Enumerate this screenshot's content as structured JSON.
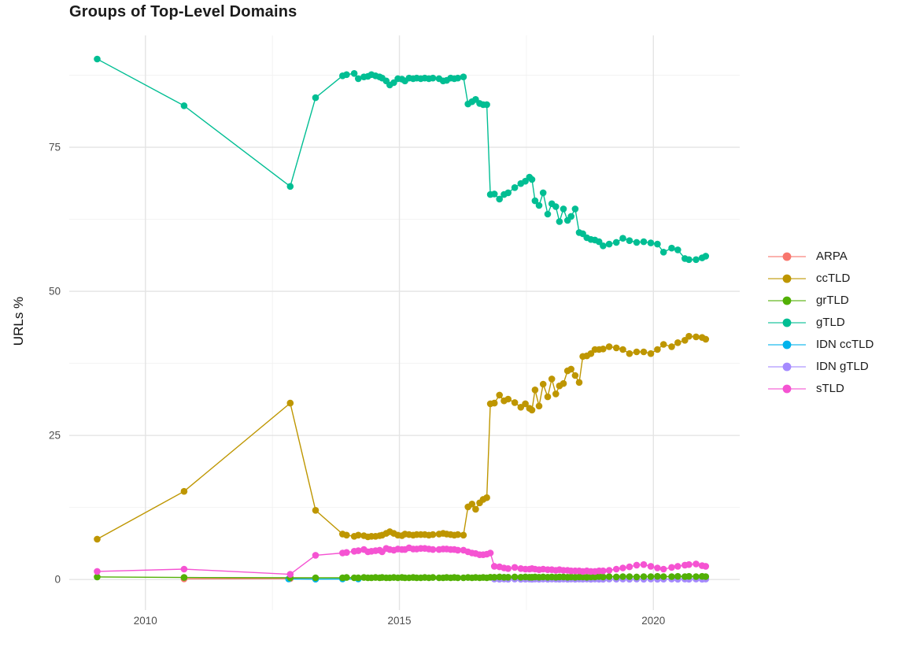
{
  "chart_data": {
    "type": "line",
    "title": "Groups of Top-Level Domains",
    "xlabel": "",
    "ylabel": "URLs %",
    "xlim": [
      2008.5,
      2021.7
    ],
    "ylim": [
      -5.3,
      94.4
    ],
    "grid": true,
    "legend_position": "right",
    "xticks": {
      "values": [
        2010,
        2015,
        2020
      ],
      "labels": [
        "2010",
        "2015",
        "2020"
      ]
    },
    "x_minor": [
      2012.5,
      2017.5
    ],
    "yticks": {
      "values": [
        0,
        25,
        50,
        75
      ],
      "labels": [
        "0",
        "25",
        "50",
        "75"
      ]
    },
    "y_minor": [
      12.5,
      37.5,
      62.5,
      87.5
    ],
    "series": [
      {
        "name": "ARPA",
        "color": "#F8766D",
        "x": [
          2010.76,
          2012.85,
          2013.35
        ],
        "y": [
          0.12,
          0.15,
          0.1
        ]
      },
      {
        "name": "ccTLD",
        "color": "#BE9600",
        "x": [
          2009.05,
          2010.76,
          2012.85,
          2013.35,
          2013.88,
          2013.96,
          2014.11,
          2014.19,
          2014.3,
          2014.38,
          2014.45,
          2014.53,
          2014.61,
          2014.66,
          2014.74,
          2014.81,
          2014.89,
          2014.97,
          2015.05,
          2015.11,
          2015.19,
          2015.27,
          2015.34,
          2015.42,
          2015.5,
          2015.58,
          2015.66,
          2015.78,
          2015.86,
          2015.93,
          2016.01,
          2016.08,
          2016.15,
          2016.26,
          2016.35,
          2016.43,
          2016.5,
          2016.58,
          2016.65,
          2016.72,
          2016.79,
          2016.87,
          2016.97,
          2017.06,
          2017.14,
          2017.27,
          2017.39,
          2017.48,
          2017.56,
          2017.61,
          2017.67,
          2017.75,
          2017.83,
          2017.92,
          2018.0,
          2018.08,
          2018.15,
          2018.23,
          2018.31,
          2018.38,
          2018.46,
          2018.54,
          2018.61,
          2018.69,
          2018.77,
          2018.85,
          2018.93,
          2019.01,
          2019.13,
          2019.27,
          2019.4,
          2019.53,
          2019.67,
          2019.81,
          2019.95,
          2020.08,
          2020.2,
          2020.36,
          2020.48,
          2020.62,
          2020.7,
          2020.84,
          2020.96,
          2021.03
        ],
        "y": [
          7.0,
          15.3,
          30.6,
          12.0,
          7.9,
          7.7,
          7.5,
          7.7,
          7.6,
          7.4,
          7.5,
          7.5,
          7.6,
          7.7,
          8.0,
          8.3,
          8.0,
          7.7,
          7.6,
          7.9,
          7.8,
          7.7,
          7.8,
          7.8,
          7.8,
          7.7,
          7.8,
          7.9,
          8.0,
          7.9,
          7.8,
          7.7,
          7.8,
          7.7,
          12.6,
          13.1,
          12.2,
          13.3,
          13.9,
          14.2,
          30.5,
          30.6,
          32.0,
          31.0,
          31.3,
          30.7,
          29.9,
          30.5,
          29.7,
          29.4,
          32.9,
          30.1,
          33.9,
          31.7,
          34.8,
          32.2,
          33.6,
          34.0,
          36.2,
          36.5,
          35.4,
          34.2,
          38.7,
          38.8,
          39.2,
          39.9,
          39.9,
          40.0,
          40.4,
          40.2,
          39.9,
          39.2,
          39.5,
          39.5,
          39.2,
          39.9,
          40.8,
          40.4,
          41.1,
          41.5,
          42.2,
          42.1,
          42.0,
          41.7
        ]
      },
      {
        "name": "grTLD",
        "color": "#52B005",
        "x": [
          2009.05,
          2010.76,
          2012.85,
          2013.35,
          2013.88,
          2013.96,
          2014.11,
          2014.19,
          2014.3,
          2014.38,
          2014.45,
          2014.53,
          2014.61,
          2014.66,
          2014.74,
          2014.81,
          2014.89,
          2014.97,
          2015.05,
          2015.11,
          2015.19,
          2015.27,
          2015.34,
          2015.42,
          2015.5,
          2015.58,
          2015.66,
          2015.78,
          2015.86,
          2015.93,
          2016.01,
          2016.08,
          2016.15,
          2016.26,
          2016.35,
          2016.43,
          2016.5,
          2016.58,
          2016.65,
          2016.72,
          2016.79,
          2016.87,
          2016.97,
          2017.06,
          2017.14,
          2017.27,
          2017.39,
          2017.48,
          2017.56,
          2017.61,
          2017.67,
          2017.75,
          2017.83,
          2017.92,
          2018.0,
          2018.08,
          2018.15,
          2018.23,
          2018.31,
          2018.38,
          2018.46,
          2018.54,
          2018.61,
          2018.69,
          2018.77,
          2018.85,
          2018.93,
          2019.01,
          2019.13,
          2019.27,
          2019.4,
          2019.53,
          2019.67,
          2019.81,
          2019.95,
          2020.08,
          2020.2,
          2020.36,
          2020.48,
          2020.62,
          2020.7,
          2020.84,
          2020.96,
          2021.03
        ],
        "y": [
          0.45,
          0.35,
          0.3,
          0.3,
          0.3,
          0.35,
          0.3,
          0.3,
          0.35,
          0.3,
          0.3,
          0.35,
          0.3,
          0.35,
          0.3,
          0.3,
          0.35,
          0.3,
          0.35,
          0.3,
          0.3,
          0.35,
          0.3,
          0.3,
          0.35,
          0.3,
          0.35,
          0.3,
          0.3,
          0.35,
          0.3,
          0.35,
          0.3,
          0.3,
          0.35,
          0.3,
          0.35,
          0.3,
          0.35,
          0.3,
          0.4,
          0.4,
          0.45,
          0.4,
          0.4,
          0.45,
          0.4,
          0.45,
          0.4,
          0.4,
          0.45,
          0.4,
          0.45,
          0.4,
          0.45,
          0.4,
          0.45,
          0.45,
          0.4,
          0.45,
          0.4,
          0.45,
          0.45,
          0.4,
          0.45,
          0.45,
          0.5,
          0.45,
          0.5,
          0.45,
          0.5,
          0.5,
          0.45,
          0.5,
          0.5,
          0.55,
          0.5,
          0.5,
          0.55,
          0.5,
          0.55,
          0.5,
          0.55,
          0.5
        ]
      },
      {
        "name": "gTLD",
        "color": "#00BE93",
        "x": [
          2009.05,
          2010.76,
          2012.85,
          2013.35,
          2013.88,
          2013.96,
          2014.11,
          2014.19,
          2014.3,
          2014.38,
          2014.45,
          2014.53,
          2014.61,
          2014.66,
          2014.74,
          2014.81,
          2014.89,
          2014.97,
          2015.05,
          2015.11,
          2015.19,
          2015.27,
          2015.34,
          2015.42,
          2015.5,
          2015.58,
          2015.66,
          2015.78,
          2015.86,
          2015.93,
          2016.01,
          2016.08,
          2016.15,
          2016.26,
          2016.35,
          2016.43,
          2016.5,
          2016.58,
          2016.65,
          2016.72,
          2016.79,
          2016.87,
          2016.97,
          2017.06,
          2017.14,
          2017.27,
          2017.39,
          2017.48,
          2017.56,
          2017.61,
          2017.67,
          2017.75,
          2017.83,
          2017.92,
          2018.0,
          2018.08,
          2018.15,
          2018.23,
          2018.31,
          2018.38,
          2018.46,
          2018.54,
          2018.61,
          2018.69,
          2018.77,
          2018.85,
          2018.93,
          2019.01,
          2019.13,
          2019.27,
          2019.4,
          2019.53,
          2019.67,
          2019.81,
          2019.95,
          2020.08,
          2020.2,
          2020.36,
          2020.48,
          2020.62,
          2020.7,
          2020.84,
          2020.96,
          2021.03
        ],
        "y": [
          90.3,
          82.2,
          68.2,
          83.6,
          87.4,
          87.6,
          87.8,
          86.9,
          87.2,
          87.3,
          87.6,
          87.4,
          87.2,
          87.0,
          86.5,
          85.8,
          86.2,
          86.9,
          86.8,
          86.5,
          87.0,
          86.9,
          87.0,
          86.9,
          87.0,
          86.9,
          87.0,
          86.9,
          86.5,
          86.6,
          87.0,
          86.9,
          87.0,
          87.2,
          82.5,
          82.9,
          83.3,
          82.6,
          82.4,
          82.4,
          66.8,
          66.9,
          66.0,
          66.8,
          67.1,
          68.0,
          68.7,
          69.1,
          69.8,
          69.4,
          65.7,
          64.9,
          67.1,
          63.4,
          65.2,
          64.7,
          62.1,
          64.3,
          62.3,
          63.0,
          64.3,
          60.2,
          60.0,
          59.3,
          59.0,
          58.9,
          58.6,
          57.9,
          58.2,
          58.5,
          59.2,
          58.8,
          58.5,
          58.6,
          58.4,
          58.2,
          56.8,
          57.5,
          57.2,
          55.7,
          55.5,
          55.5,
          55.8,
          56.1
        ]
      },
      {
        "name": "IDN ccTLD",
        "color": "#00B3EC",
        "x": [
          2012.82,
          2013.35,
          2013.88,
          2014.19
        ],
        "y": [
          0.1,
          0.07,
          0.1,
          0.1
        ]
      },
      {
        "name": "IDN gTLD",
        "color": "#A58AFF",
        "x": [
          2016.87,
          2016.97,
          2017.06,
          2017.14,
          2017.27,
          2017.39,
          2017.48,
          2017.56,
          2017.61,
          2017.67,
          2017.75,
          2017.83,
          2017.92,
          2018.0,
          2018.08,
          2018.15,
          2018.23,
          2018.31,
          2018.38,
          2018.46,
          2018.54,
          2018.61,
          2018.69,
          2018.77,
          2018.85,
          2018.93,
          2019.01,
          2019.13,
          2019.27,
          2019.4,
          2019.53,
          2019.67,
          2019.81,
          2019.95,
          2020.08,
          2020.2,
          2020.36,
          2020.48,
          2020.62,
          2020.7,
          2020.84,
          2020.96,
          2021.03
        ],
        "y": [
          0.08,
          0.05,
          0.08,
          0.06,
          0.08,
          0.05,
          0.07,
          0.08,
          0.05,
          0.08,
          0.06,
          0.08,
          0.05,
          0.08,
          0.07,
          0.05,
          0.08,
          0.06,
          0.08,
          0.05,
          0.08,
          0.07,
          0.08,
          0.05,
          0.08,
          0.06,
          0.05,
          0.08,
          0.07,
          0.08,
          0.05,
          0.08,
          0.06,
          0.08,
          0.05,
          0.07,
          0.08,
          0.05,
          0.08,
          0.06,
          0.08,
          0.05,
          0.08
        ]
      },
      {
        "name": "sTLD",
        "color": "#F553D2",
        "x": [
          2009.05,
          2010.76,
          2012.85,
          2013.35,
          2013.88,
          2013.96,
          2014.11,
          2014.19,
          2014.3,
          2014.38,
          2014.45,
          2014.53,
          2014.61,
          2014.66,
          2014.74,
          2014.81,
          2014.89,
          2014.97,
          2015.05,
          2015.11,
          2015.19,
          2015.27,
          2015.34,
          2015.42,
          2015.5,
          2015.58,
          2015.66,
          2015.78,
          2015.86,
          2015.93,
          2016.01,
          2016.08,
          2016.15,
          2016.26,
          2016.35,
          2016.43,
          2016.5,
          2016.58,
          2016.65,
          2016.72,
          2016.79,
          2016.87,
          2016.97,
          2017.06,
          2017.14,
          2017.27,
          2017.39,
          2017.48,
          2017.56,
          2017.61,
          2017.67,
          2017.75,
          2017.83,
          2017.92,
          2018.0,
          2018.08,
          2018.15,
          2018.23,
          2018.31,
          2018.38,
          2018.46,
          2018.54,
          2018.61,
          2018.69,
          2018.77,
          2018.85,
          2018.93,
          2019.01,
          2019.13,
          2019.27,
          2019.4,
          2019.53,
          2019.67,
          2019.81,
          2019.95,
          2020.08,
          2020.2,
          2020.36,
          2020.48,
          2020.62,
          2020.7,
          2020.84,
          2020.96,
          2021.03
        ],
        "y": [
          1.4,
          1.8,
          0.9,
          4.2,
          4.6,
          4.7,
          4.9,
          5.0,
          5.2,
          4.8,
          4.9,
          5.0,
          5.1,
          4.8,
          5.4,
          5.2,
          5.1,
          5.3,
          5.2,
          5.2,
          5.5,
          5.3,
          5.3,
          5.4,
          5.4,
          5.3,
          5.2,
          5.2,
          5.3,
          5.3,
          5.2,
          5.2,
          5.1,
          5.1,
          4.8,
          4.6,
          4.5,
          4.3,
          4.3,
          4.4,
          4.6,
          2.3,
          2.2,
          2.0,
          1.9,
          2.1,
          1.9,
          1.8,
          1.8,
          1.9,
          1.8,
          1.7,
          1.8,
          1.7,
          1.7,
          1.6,
          1.7,
          1.6,
          1.6,
          1.5,
          1.5,
          1.5,
          1.4,
          1.5,
          1.4,
          1.4,
          1.5,
          1.5,
          1.6,
          1.8,
          2.0,
          2.2,
          2.5,
          2.6,
          2.3,
          2.0,
          1.8,
          2.1,
          2.3,
          2.5,
          2.6,
          2.7,
          2.4,
          2.3
        ]
      }
    ]
  }
}
